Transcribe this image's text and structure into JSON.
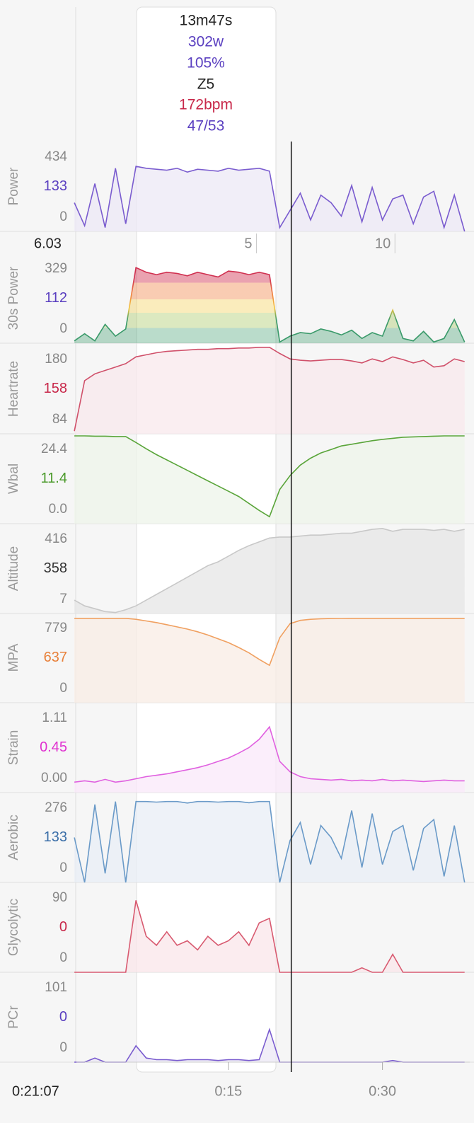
{
  "chart_data": {
    "type": "line",
    "tooltip": {
      "duration": "13m47s",
      "power": "302w",
      "percent": "105%",
      "zone": "Z5",
      "heartrate": "172bpm",
      "balance": "47/53"
    },
    "cursor_time": {
      "value": 21.12,
      "label": "0:21:07"
    },
    "cursor_distance": 6.03,
    "distance_lim": [
      -1.5,
      12.7
    ],
    "distance_ticks": [
      5,
      10
    ],
    "x": [
      0,
      1,
      2,
      3,
      4,
      5,
      6,
      7,
      8,
      9,
      10,
      11,
      12,
      13,
      14,
      15,
      16,
      17,
      18,
      19,
      20,
      21,
      22,
      23,
      24,
      25,
      26,
      27,
      28,
      29,
      30,
      31,
      32,
      33,
      34,
      35,
      36,
      37,
      38
    ],
    "xlim": [
      0.2,
      38.5
    ],
    "xticks": [
      {
        "value": 15,
        "label": "0:15"
      },
      {
        "value": 30,
        "label": "0:30"
      }
    ],
    "series": [
      {
        "name": "Power",
        "color": "#7a5ccf",
        "fill": "#ece8f6",
        "value_color": "#5a3fc0",
        "ylim": [
          0,
          470
        ],
        "yticks": [
          0,
          434
        ],
        "current": 133,
        "values": [
          150,
          30,
          250,
          20,
          330,
          40,
          340,
          330,
          325,
          320,
          330,
          310,
          325,
          320,
          315,
          330,
          320,
          325,
          330,
          315,
          20,
          110,
          200,
          60,
          190,
          150,
          80,
          240,
          50,
          230,
          60,
          170,
          190,
          40,
          180,
          210,
          20,
          190,
          0
        ]
      },
      {
        "name": "30s Power",
        "color": "#3a9a6a",
        "fill": "zones",
        "value_color": "#5a3fc0",
        "ylim": [
          0,
          380
        ],
        "yticks": [
          0,
          329
        ],
        "current": 112,
        "values": [
          10,
          40,
          10,
          80,
          30,
          60,
          320,
          300,
          290,
          300,
          295,
          285,
          300,
          290,
          280,
          305,
          300,
          290,
          300,
          290,
          5,
          30,
          45,
          40,
          60,
          50,
          35,
          55,
          20,
          45,
          30,
          140,
          20,
          10,
          50,
          5,
          20,
          100,
          5
        ]
      },
      {
        "name": "Heartrate",
        "color": "#d0506a",
        "fill": "#f8e8ec",
        "value_color": "#c8284a",
        "ylim": [
          62,
          194
        ],
        "yticks": [
          84,
          180
        ],
        "current": 158,
        "values": [
          66,
          140,
          150,
          155,
          160,
          165,
          175,
          178,
          181,
          183,
          184,
          185,
          186,
          186,
          187,
          187,
          188,
          188,
          189,
          189,
          180,
          172,
          170,
          169,
          170,
          171,
          171,
          169,
          166,
          172,
          168,
          175,
          171,
          166,
          170,
          160,
          162,
          172,
          168
        ]
      },
      {
        "name": "Wbal",
        "color": "#5aa53a",
        "fill": "#edf4ea",
        "value_color": "#4a9a2a",
        "ylim": [
          -0.8,
          25
        ],
        "yticks": [
          {
            "value": 0,
            "label": "0.0"
          },
          24.4
        ],
        "current": 11.4,
        "values": [
          24.4,
          24.4,
          24.3,
          24.3,
          24.2,
          24.2,
          22.5,
          20.7,
          19,
          17.5,
          16,
          14.5,
          13,
          11.5,
          10,
          8.5,
          7,
          5,
          3,
          1.2,
          9,
          13,
          16,
          18,
          19.5,
          20.5,
          21.5,
          22,
          22.5,
          23,
          23.4,
          23.7,
          24,
          24.1,
          24.2,
          24.3,
          24.4,
          24.4,
          24.4
        ]
      },
      {
        "name": "Altitude",
        "color": "#c8c8c8",
        "fill": "#e6e6e6",
        "value_color": "#333333",
        "ylim": [
          0,
          470
        ],
        "yticks": [
          7,
          416
        ],
        "current": 358,
        "values": [
          70,
          40,
          25,
          10,
          5,
          20,
          40,
          70,
          100,
          130,
          160,
          190,
          220,
          250,
          270,
          300,
          330,
          355,
          375,
          395,
          400,
          400,
          405,
          410,
          410,
          415,
          420,
          420,
          430,
          440,
          445,
          430,
          440,
          440,
          440,
          435,
          440,
          430,
          440
        ]
      },
      {
        "name": "MPA",
        "color": "#f0a060",
        "fill": "#f8ece4",
        "value_color": "#e8803a",
        "ylim": [
          0,
          830
        ],
        "yticks": [
          0,
          779
        ],
        "current": 637,
        "values": [
          779,
          779,
          779,
          779,
          779,
          779,
          770,
          755,
          740,
          720,
          700,
          680,
          655,
          625,
          590,
          555,
          510,
          460,
          400,
          345,
          600,
          730,
          760,
          770,
          775,
          777,
          778,
          779,
          779,
          779,
          779,
          779,
          779,
          779,
          779,
          779,
          779,
          779,
          779
        ]
      },
      {
        "name": "Strain",
        "color": "#e060e0",
        "fill": "#f9e8f9",
        "value_color": "#e030d0",
        "ylim": [
          -0.05,
          1.25
        ],
        "yticks": [
          {
            "value": 0,
            "label": "0.00"
          },
          1.11
        ],
        "current": 0.45,
        "values": [
          0.1,
          0.12,
          0.1,
          0.14,
          0.1,
          0.12,
          0.15,
          0.18,
          0.2,
          0.22,
          0.25,
          0.28,
          0.31,
          0.35,
          0.4,
          0.45,
          0.52,
          0.6,
          0.72,
          0.9,
          0.4,
          0.25,
          0.18,
          0.15,
          0.14,
          0.13,
          0.14,
          0.12,
          0.13,
          0.12,
          0.14,
          0.12,
          0.13,
          0.12,
          0.11,
          0.12,
          0.13,
          0.12,
          0.12
        ]
      },
      {
        "name": "Aerobic",
        "color": "#6a9ac8",
        "fill": "#e8eef5",
        "value_color": "#3a6ea8",
        "ylim": [
          0,
          300
        ],
        "yticks": [
          0,
          276
        ],
        "current": 133,
        "values": [
          150,
          0,
          260,
          30,
          270,
          0,
          270,
          270,
          268,
          270,
          270,
          265,
          270,
          270,
          268,
          270,
          270,
          266,
          270,
          270,
          0,
          140,
          200,
          60,
          190,
          150,
          80,
          240,
          50,
          230,
          60,
          170,
          190,
          40,
          180,
          210,
          20,
          190,
          0
        ]
      },
      {
        "name": "Glycolytic",
        "color": "#d85a70",
        "fill": "#f9e6ea",
        "value_color": "#c8284a",
        "ylim": [
          0,
          100
        ],
        "yticks": [
          0,
          90
        ],
        "current": 0,
        "values": [
          0,
          0,
          0,
          0,
          0,
          0,
          80,
          40,
          30,
          45,
          30,
          35,
          25,
          40,
          30,
          35,
          45,
          30,
          55,
          60,
          0,
          0,
          0,
          0,
          0,
          0,
          0,
          0,
          5,
          0,
          0,
          20,
          0,
          0,
          0,
          0,
          0,
          0,
          0
        ]
      },
      {
        "name": "PCr",
        "color": "#7a5ccf",
        "fill": "#ece8f6",
        "value_color": "#5a3fc0",
        "ylim": [
          0,
          110
        ],
        "yticks": [
          0,
          101
        ],
        "current": 0,
        "values": [
          0,
          0,
          5,
          0,
          0,
          0,
          20,
          5,
          3,
          3,
          2,
          3,
          3,
          3,
          2,
          3,
          3,
          2,
          3,
          40,
          0,
          0,
          0,
          0,
          0,
          0,
          0,
          0,
          0,
          0,
          0,
          2,
          0,
          0,
          0,
          0,
          0,
          0,
          0
        ]
      }
    ]
  }
}
